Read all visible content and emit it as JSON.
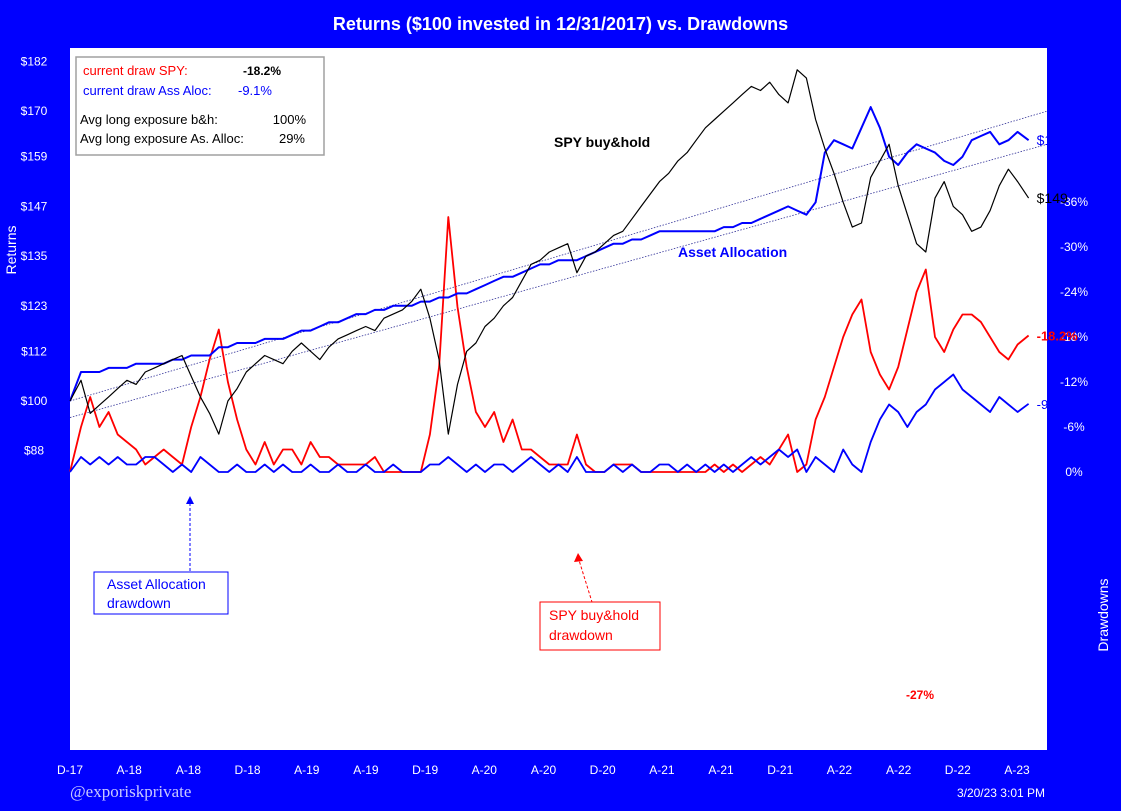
{
  "title": "Returns ($100 invested in 12/31/2017) vs. Drawdowns",
  "footer": {
    "handle": "@exporiskprivate",
    "timestamp": "3/20/23 3:01 PM"
  },
  "colors": {
    "spy": "#000000",
    "aa": "#0000ff",
    "spy_dd": "#ff0000",
    "aa_dd": "#0000ff",
    "frame": "#0000ff"
  },
  "chart_data": [
    {
      "type": "line",
      "title": "Returns ($100 invested in 12/31/2017) vs. Drawdowns",
      "ylabel": "Returns",
      "ylim": [
        88,
        182
      ],
      "ytick_labels": [
        "$182",
        "$170",
        "$159",
        "$147",
        "$135",
        "$123",
        "$112",
        "$100",
        "$88"
      ],
      "ytick_values": [
        182,
        170,
        159,
        147,
        135,
        123,
        112,
        100,
        88
      ],
      "x_tick_labels": [
        "D-17",
        "A-18",
        "A-18",
        "D-18",
        "A-19",
        "A-19",
        "D-19",
        "A-20",
        "A-20",
        "D-20",
        "A-21",
        "A-21",
        "D-21",
        "A-22",
        "A-22",
        "D-22",
        "A-23"
      ],
      "x": [
        2017.99,
        2018.05,
        2018.1,
        2018.15,
        2018.2,
        2018.25,
        2018.3,
        2018.35,
        2018.4,
        2018.45,
        2018.5,
        2018.55,
        2018.6,
        2018.65,
        2018.7,
        2018.75,
        2018.8,
        2018.85,
        2018.9,
        2018.95,
        2019.0,
        2019.05,
        2019.1,
        2019.15,
        2019.2,
        2019.25,
        2019.3,
        2019.35,
        2019.4,
        2019.45,
        2019.5,
        2019.55,
        2019.6,
        2019.65,
        2019.7,
        2019.75,
        2019.8,
        2019.85,
        2019.9,
        2019.95,
        2020.0,
        2020.05,
        2020.1,
        2020.15,
        2020.2,
        2020.25,
        2020.3,
        2020.35,
        2020.4,
        2020.45,
        2020.5,
        2020.55,
        2020.6,
        2020.65,
        2020.7,
        2020.75,
        2020.8,
        2020.85,
        2020.9,
        2020.95,
        2021.0,
        2021.05,
        2021.1,
        2021.15,
        2021.2,
        2021.25,
        2021.3,
        2021.35,
        2021.4,
        2021.45,
        2021.5,
        2021.55,
        2021.6,
        2021.65,
        2021.7,
        2021.75,
        2021.8,
        2021.85,
        2021.9,
        2021.95,
        2022.0,
        2022.05,
        2022.1,
        2022.15,
        2022.2,
        2022.25,
        2022.3,
        2022.35,
        2022.4,
        2022.45,
        2022.5,
        2022.55,
        2022.6,
        2022.65,
        2022.7,
        2022.75,
        2022.8,
        2022.85,
        2022.9,
        2022.95,
        2023.0,
        2023.05,
        2023.1,
        2023.15,
        2023.21
      ],
      "series": [
        {
          "name": "SPY buy&hold",
          "color": "#000000",
          "end_label": "$149",
          "values": [
            100,
            105,
            97,
            99,
            101,
            103,
            105,
            104,
            107,
            108,
            109,
            110,
            111,
            106,
            101,
            97,
            92,
            100,
            103,
            107,
            109,
            111,
            110,
            109,
            112,
            114,
            112,
            110,
            113,
            115,
            116,
            117,
            118,
            117,
            120,
            121,
            122,
            124,
            127,
            120,
            110,
            92,
            104,
            112,
            114,
            118,
            120,
            123,
            125,
            129,
            133,
            134,
            136,
            137,
            138,
            131,
            135,
            136,
            138,
            140,
            141,
            144,
            147,
            150,
            153,
            155,
            158,
            160,
            163,
            166,
            168,
            170,
            172,
            174,
            176,
            175,
            177,
            174,
            172,
            180,
            178,
            168,
            161,
            155,
            148,
            142,
            143,
            154,
            158,
            162,
            152,
            145,
            138,
            136,
            149,
            153,
            147,
            145,
            141,
            142,
            146,
            152,
            156,
            153,
            149
          ]
        },
        {
          "name": "Asset Allocation",
          "color": "#0000ff",
          "end_label": "$163",
          "values": [
            100,
            107,
            107,
            107,
            108,
            108,
            108,
            109,
            109,
            109,
            109,
            110,
            110,
            111,
            111,
            111,
            113,
            113,
            114,
            114,
            114,
            115,
            115,
            115,
            116,
            117,
            117,
            118,
            119,
            119,
            120,
            121,
            121,
            122,
            122,
            123,
            123,
            123,
            124,
            124,
            125,
            125,
            126,
            126,
            127,
            128,
            129,
            130,
            130,
            131,
            132,
            133,
            133,
            134,
            134,
            134,
            135,
            136,
            137,
            138,
            138,
            139,
            139,
            140,
            141,
            141,
            141,
            141,
            141,
            141,
            141,
            142,
            142,
            143,
            143,
            144,
            145,
            146,
            147,
            146,
            145,
            148,
            160,
            163,
            162,
            161,
            166,
            171,
            166,
            159,
            157,
            160,
            162,
            161,
            160,
            158,
            157,
            159,
            163,
            164,
            165,
            162,
            163,
            165,
            163
          ]
        }
      ],
      "trendlines": [
        "SPY trend",
        "Asset Allocation trend"
      ],
      "trend_spy": [
        96,
        162
      ],
      "trend_aa": [
        100,
        170
      ]
    },
    {
      "type": "area",
      "ylabel": "Drawdowns",
      "ylim": [
        -36,
        0
      ],
      "ytick_labels": [
        "0%",
        "-6%",
        "-12%",
        "-18%",
        "-24%",
        "-30%",
        "-36%"
      ],
      "ytick_values": [
        0,
        -6,
        -12,
        -18,
        -24,
        -30,
        -36
      ],
      "x": [
        2017.99,
        2018.05,
        2018.1,
        2018.15,
        2018.2,
        2018.25,
        2018.3,
        2018.35,
        2018.4,
        2018.45,
        2018.5,
        2018.55,
        2018.6,
        2018.65,
        2018.7,
        2018.75,
        2018.8,
        2018.85,
        2018.9,
        2018.95,
        2019.0,
        2019.05,
        2019.1,
        2019.15,
        2019.2,
        2019.25,
        2019.3,
        2019.35,
        2019.4,
        2019.45,
        2019.5,
        2019.55,
        2019.6,
        2019.65,
        2019.7,
        2019.75,
        2019.8,
        2019.85,
        2019.9,
        2019.95,
        2020.0,
        2020.05,
        2020.1,
        2020.15,
        2020.2,
        2020.25,
        2020.3,
        2020.35,
        2020.4,
        2020.45,
        2020.5,
        2020.55,
        2020.6,
        2020.65,
        2020.7,
        2020.75,
        2020.8,
        2020.85,
        2020.9,
        2020.95,
        2021.0,
        2021.05,
        2021.1,
        2021.15,
        2021.2,
        2021.25,
        2021.3,
        2021.35,
        2021.4,
        2021.45,
        2021.5,
        2021.55,
        2021.6,
        2021.65,
        2021.7,
        2021.75,
        2021.8,
        2021.85,
        2021.9,
        2021.95,
        2022.0,
        2022.05,
        2022.1,
        2022.15,
        2022.2,
        2022.25,
        2022.3,
        2022.35,
        2022.4,
        2022.45,
        2022.5,
        2022.55,
        2022.6,
        2022.65,
        2022.7,
        2022.75,
        2022.8,
        2022.85,
        2022.9,
        2022.95,
        2023.0,
        2023.05,
        2023.1,
        2023.15,
        2023.21
      ],
      "series": [
        {
          "name": "SPY buy&hold drawdown",
          "color": "#ff0000",
          "end_label": "-18.2%",
          "values": [
            0,
            -6,
            -10,
            -6,
            -8,
            -5,
            -4,
            -3,
            -1,
            -2,
            -3,
            -2,
            -1,
            -6,
            -10,
            -15,
            -19,
            -12,
            -7,
            -3,
            -1,
            -4,
            -1,
            -3,
            -3,
            -1,
            -4,
            -2,
            -2,
            -1,
            -1,
            -1,
            -1,
            -2,
            0,
            0,
            0,
            0,
            0,
            -5,
            -14,
            -34,
            -22,
            -14,
            -8,
            -6,
            -8,
            -4,
            -7,
            -3,
            -3,
            -2,
            -1,
            -1,
            -1,
            -5,
            -1,
            0,
            0,
            -1,
            -1,
            -1,
            0,
            0,
            0,
            0,
            0,
            0,
            0,
            0,
            -1,
            0,
            -1,
            0,
            -1,
            -2,
            -1,
            -3,
            -5,
            0,
            -1,
            -7,
            -10,
            -14,
            -18,
            -21,
            -23,
            -16,
            -13,
            -11,
            -14,
            -19,
            -24,
            -27,
            -18,
            -16,
            -19,
            -21,
            -21,
            -20,
            -18,
            -16,
            -15,
            -17,
            -18.2
          ]
        },
        {
          "name": "Asset Allocation drawdown",
          "color": "#0000ff",
          "end_label": "-9.1%",
          "values": [
            0,
            -2,
            -1,
            -2,
            -1,
            -2,
            -1,
            -1,
            -2,
            -2,
            -1,
            0,
            -1,
            0,
            -2,
            -1,
            0,
            0,
            -1,
            0,
            0,
            -1,
            0,
            -1,
            0,
            0,
            -1,
            0,
            0,
            -1,
            0,
            0,
            -1,
            0,
            0,
            -1,
            0,
            0,
            0,
            -1,
            -1,
            -2,
            -1,
            0,
            -1,
            0,
            -1,
            -1,
            0,
            -1,
            -2,
            -1,
            0,
            -1,
            0,
            -2,
            0,
            0,
            0,
            -1,
            0,
            -1,
            0,
            0,
            -1,
            -1,
            0,
            -1,
            0,
            -1,
            0,
            -1,
            0,
            -1,
            -2,
            -1,
            -2,
            -3,
            -2,
            -3,
            0,
            -2,
            -1,
            0,
            -3,
            -1,
            0,
            -4,
            -7,
            -9,
            -8,
            -6,
            -8,
            -9,
            -11,
            -12,
            -13,
            -11,
            -10,
            -9,
            -8,
            -10,
            -9,
            -8,
            -9.1
          ]
        }
      ]
    }
  ],
  "legend_box": {
    "spy_draw_label": "current draw SPY:",
    "spy_draw_value": "-18.2%",
    "aa_draw_label": "current draw Ass Aloc:",
    "aa_draw_value": "-9.1%",
    "avg_bh_label": "Avg long exposure b&h:",
    "avg_bh_value": "100%",
    "avg_aa_label": "Avg long exposure As. Alloc:",
    "avg_aa_value": "29%"
  },
  "annotations": {
    "spy_series": "SPY buy&hold",
    "aa_series": "Asset Allocation",
    "aa_dd_box_1": "Asset Allocation",
    "aa_dd_box_2": "drawdown",
    "spy_dd_box_1": "SPY buy&hold",
    "spy_dd_box_2": "drawdown",
    "min_dd": "-27%"
  }
}
